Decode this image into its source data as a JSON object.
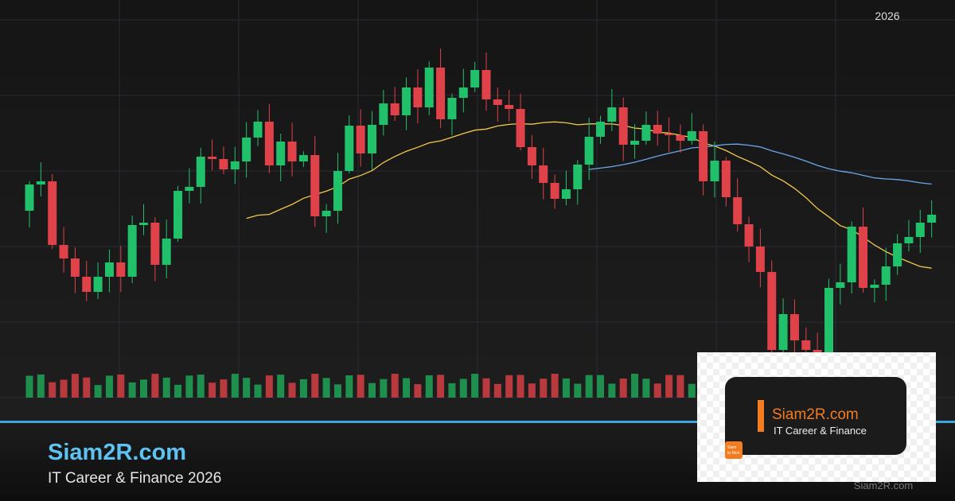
{
  "header": {
    "year": "2026"
  },
  "brand": {
    "title": "Siam2R.com",
    "subtitle": "IT Career & Finance 2026"
  },
  "logo": {
    "title": "Siam2R.com",
    "subtitle": "IT Career & Finance",
    "badge_lines": [
      "Siam",
      "to Rich"
    ]
  },
  "watermark": "Siam2R.com"
}
